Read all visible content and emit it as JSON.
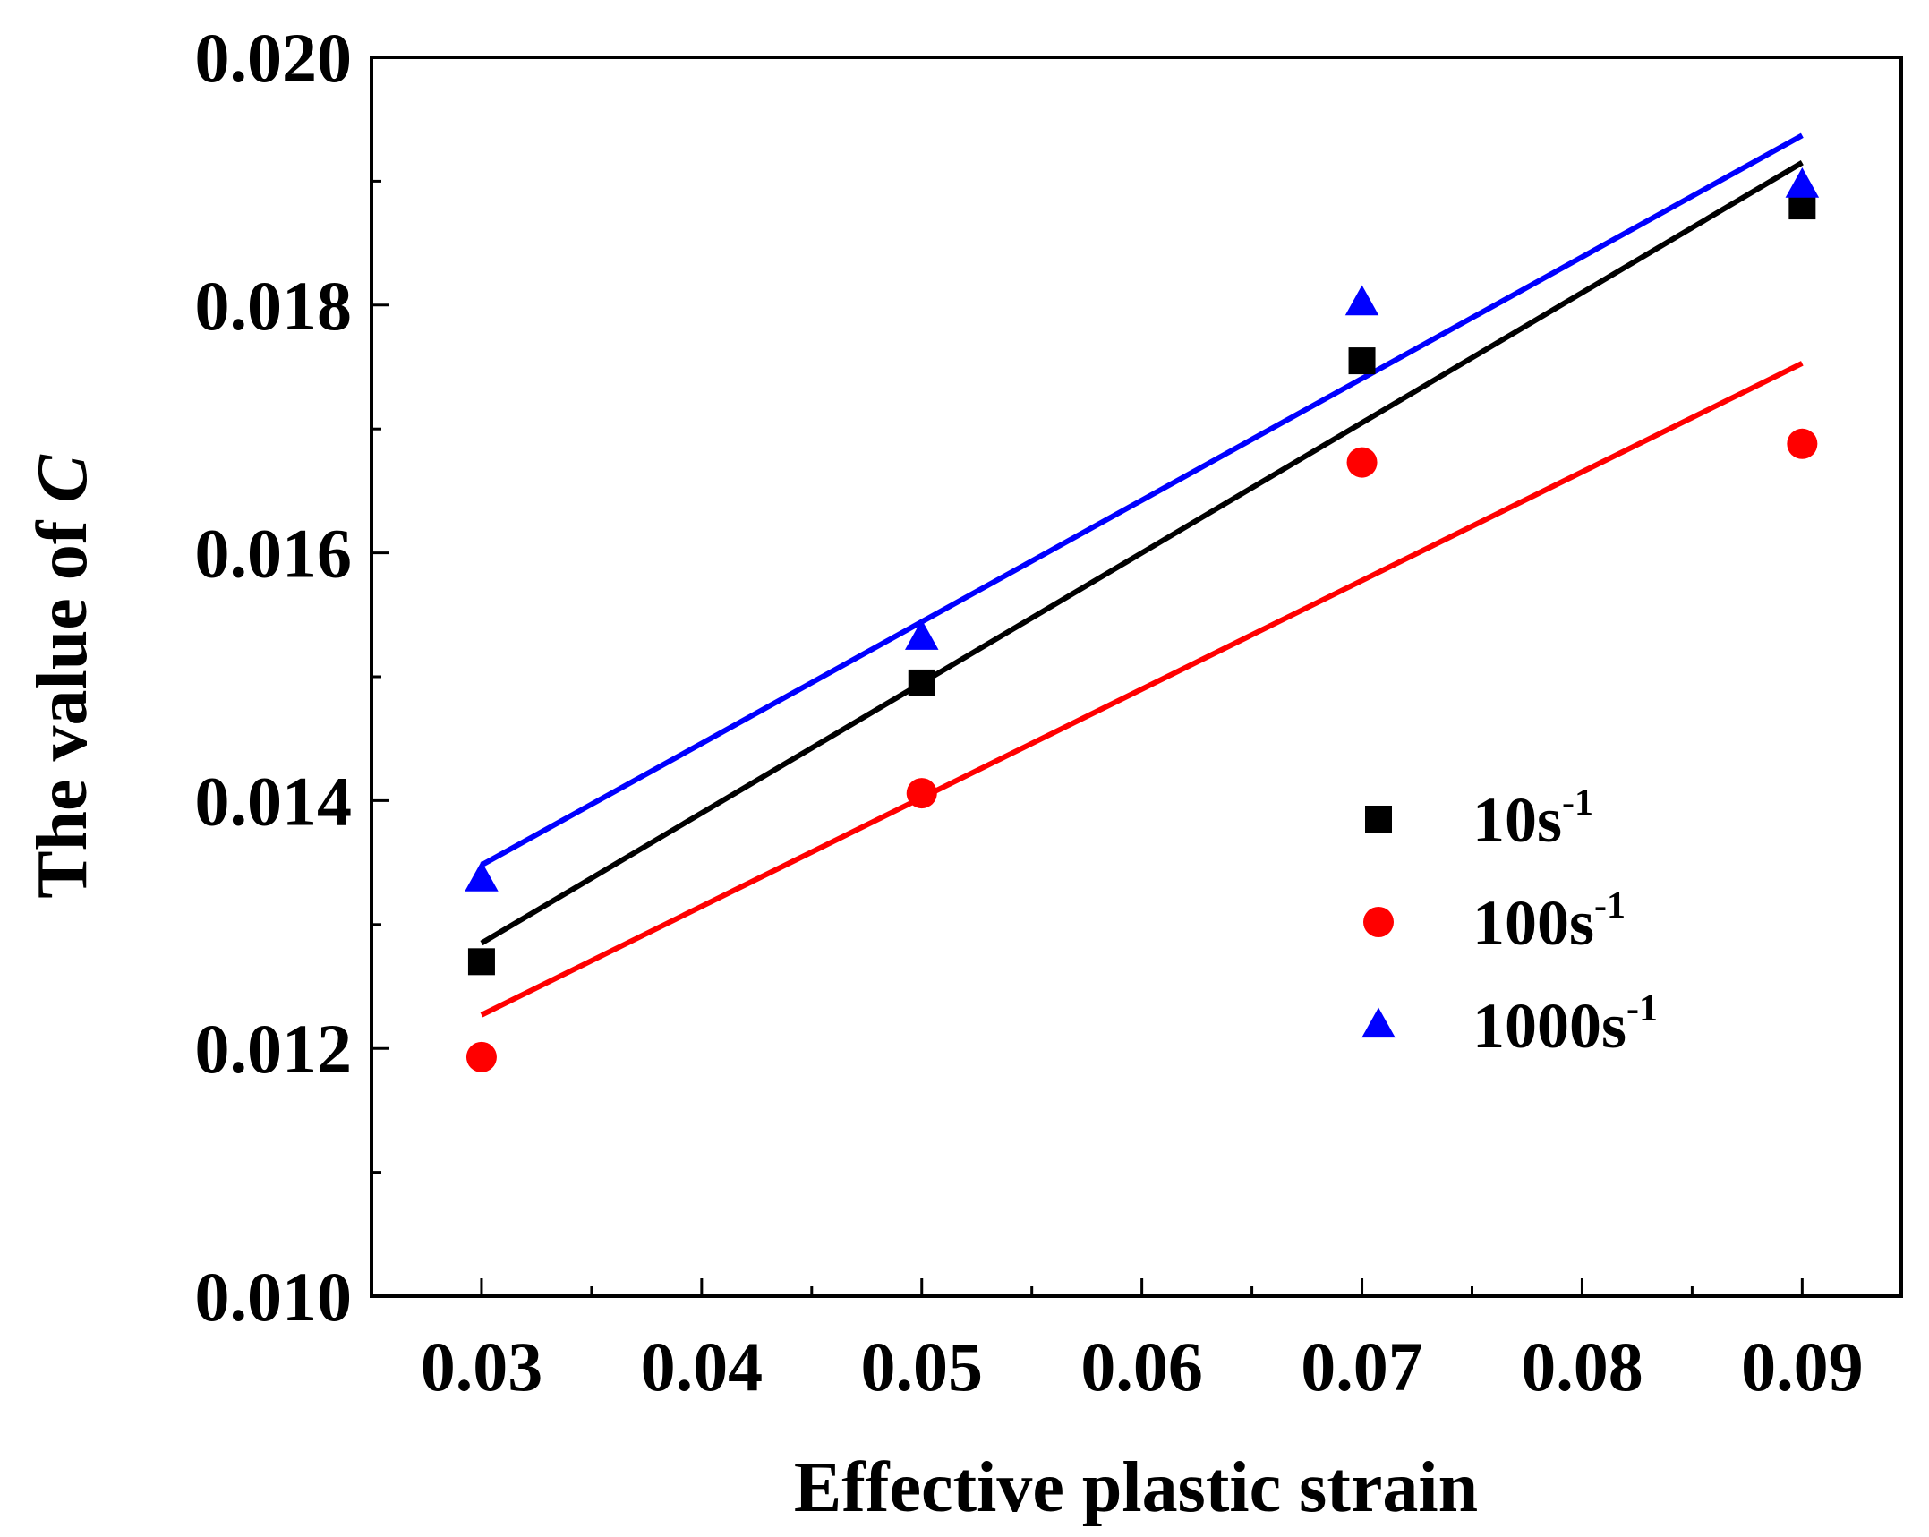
{
  "chart_data": {
    "type": "scatter",
    "title": "",
    "xlabel": "Effective plastic strain",
    "ylabel_prefix": "The value of ",
    "ylabel_var": "C",
    "xlim": [
      0.025,
      0.0945
    ],
    "ylim": [
      0.01,
      0.02
    ],
    "x_ticks": [
      0.03,
      0.04,
      0.05,
      0.06,
      0.07,
      0.08,
      0.09
    ],
    "x_tick_labels": [
      "0.03",
      "0.04",
      "0.05",
      "0.06",
      "0.07",
      "0.08",
      "0.09"
    ],
    "y_ticks": [
      0.01,
      0.012,
      0.014,
      0.016,
      0.018,
      0.02
    ],
    "y_tick_labels": [
      "0.010",
      "0.012",
      "0.014",
      "0.016",
      "0.018",
      "0.020"
    ],
    "x": [
      0.03,
      0.05,
      0.07,
      0.09
    ],
    "series": [
      {
        "name": "10s-1",
        "label_base": "10s",
        "label_sup": "-1",
        "marker": "square",
        "color": "#000000",
        "values": [
          0.0127,
          0.01495,
          0.01755,
          0.0188
        ],
        "fit": {
          "x": [
            0.03,
            0.09
          ],
          "y": [
            0.01285,
            0.01915
          ]
        }
      },
      {
        "name": "100s-1",
        "label_base": "100s",
        "label_sup": "-1",
        "marker": "circle",
        "color": "#ff0000",
        "values": [
          0.01193,
          0.01406,
          0.01673,
          0.01688
        ],
        "fit": {
          "x": [
            0.03,
            0.09
          ],
          "y": [
            0.01227,
            0.01753
          ]
        }
      },
      {
        "name": "1000s-1",
        "label_base": "1000s",
        "label_sup": "-1",
        "marker": "triangle",
        "color": "#0000ff",
        "values": [
          0.01337,
          0.01532,
          0.01802,
          0.01897
        ],
        "fit": {
          "x": [
            0.03,
            0.09
          ],
          "y": [
            0.01348,
            0.01937
          ]
        }
      }
    ],
    "legend_position": "middle-right"
  }
}
